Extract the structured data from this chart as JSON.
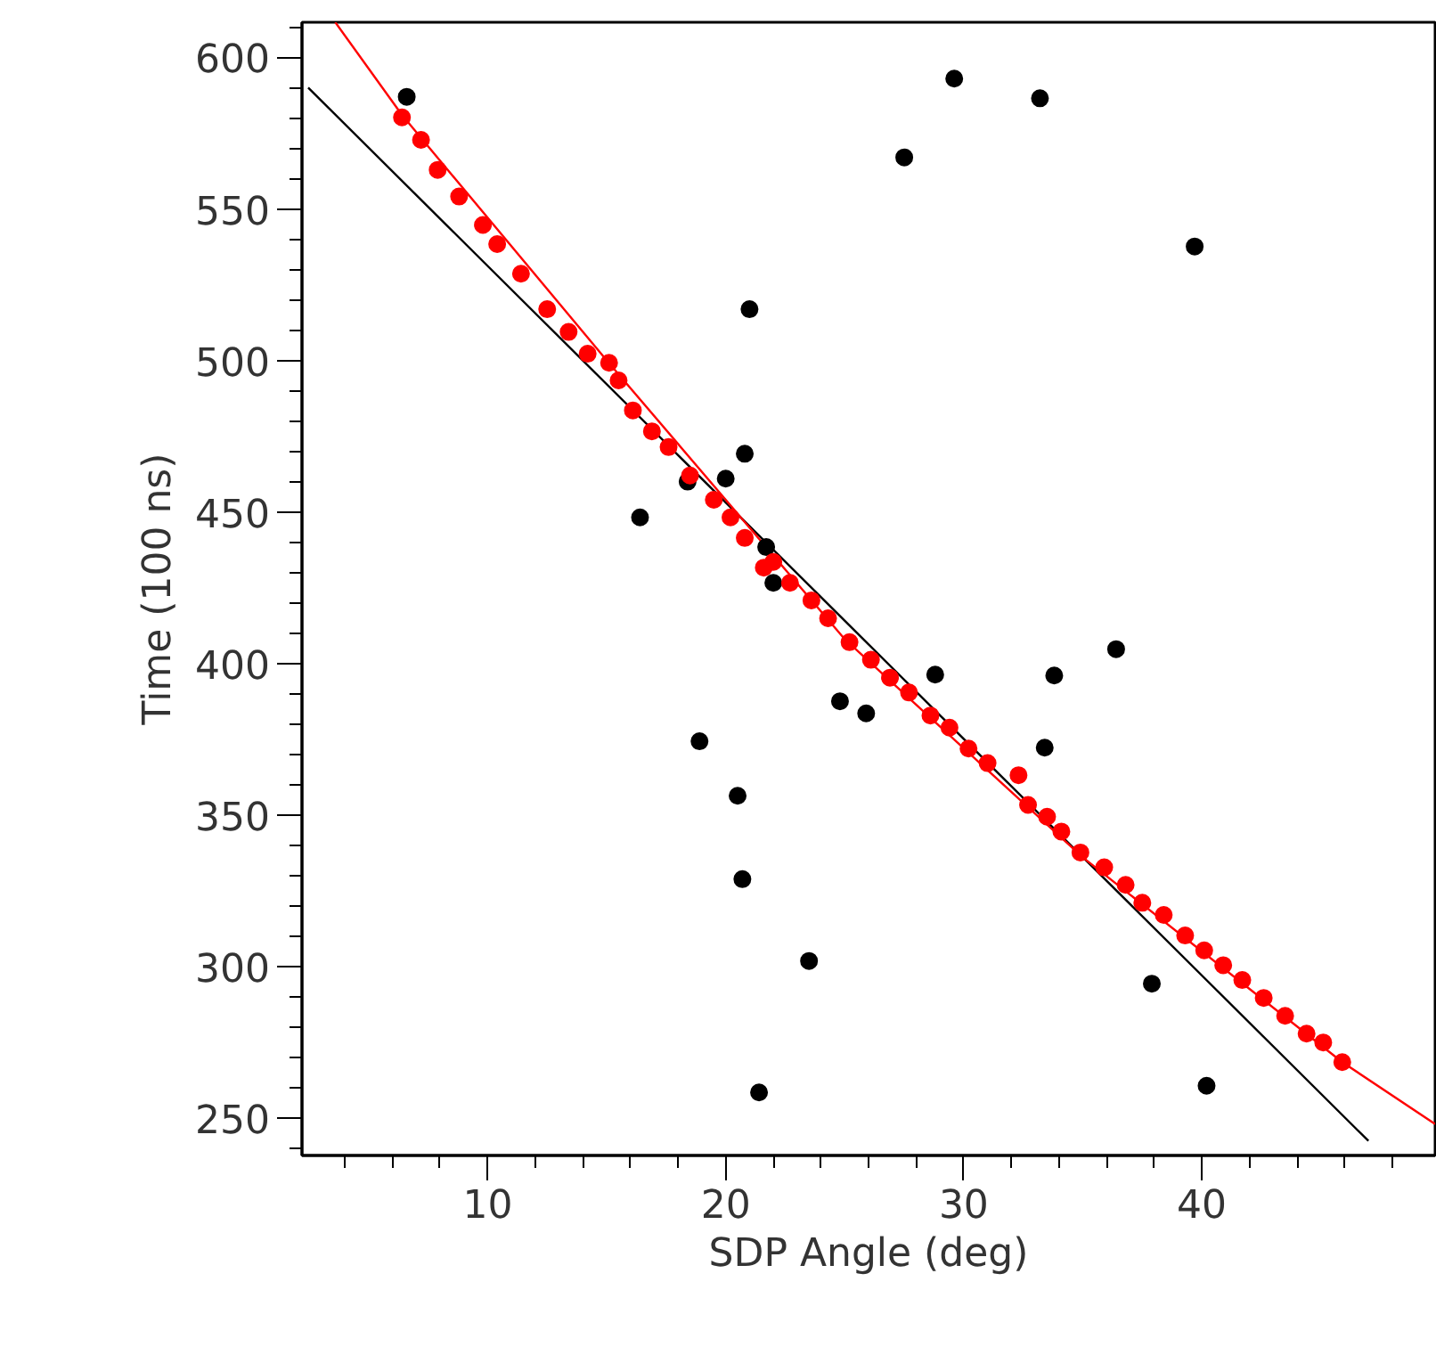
{
  "chart_data": {
    "type": "scatter",
    "xlabel": "SDP Angle (deg)",
    "ylabel": "Time (100 ns)",
    "xlim": [
      2.2,
      49.8
    ],
    "ylim": [
      237.6,
      611.6
    ],
    "xticks": [
      {
        "value": 4,
        "label": null
      },
      {
        "value": 6,
        "label": null
      },
      {
        "value": 8,
        "label": null
      },
      10,
      {
        "value": 12,
        "label": null
      },
      {
        "value": 14,
        "label": null
      },
      {
        "value": 16,
        "label": null
      },
      {
        "value": 18,
        "label": null
      },
      20,
      {
        "value": 22,
        "label": null
      },
      {
        "value": 24,
        "label": null
      },
      {
        "value": 26,
        "label": null
      },
      {
        "value": 28,
        "label": null
      },
      30,
      {
        "value": 32,
        "label": null
      },
      {
        "value": 34,
        "label": null
      },
      {
        "value": 36,
        "label": null
      },
      {
        "value": 38,
        "label": null
      },
      40,
      {
        "value": 42,
        "label": null
      },
      {
        "value": 44,
        "label": null
      },
      {
        "value": 46,
        "label": null
      },
      {
        "value": 48,
        "label": null
      }
    ],
    "yticks": [
      {
        "value": 240,
        "label": null
      },
      250,
      {
        "value": 260,
        "label": null
      },
      {
        "value": 270,
        "label": null
      },
      {
        "value": 280,
        "label": null
      },
      {
        "value": 290,
        "label": null
      },
      300,
      {
        "value": 310,
        "label": null
      },
      {
        "value": 320,
        "label": null
      },
      {
        "value": 330,
        "label": null
      },
      {
        "value": 340,
        "label": null
      },
      350,
      {
        "value": 360,
        "label": null
      },
      {
        "value": 370,
        "label": null
      },
      {
        "value": 380,
        "label": null
      },
      {
        "value": 390,
        "label": null
      },
      400,
      {
        "value": 410,
        "label": null
      },
      {
        "value": 420,
        "label": null
      },
      {
        "value": 430,
        "label": null
      },
      {
        "value": 440,
        "label": null
      },
      450,
      {
        "value": 460,
        "label": null
      },
      {
        "value": 470,
        "label": null
      },
      {
        "value": 480,
        "label": null
      },
      {
        "value": 490,
        "label": null
      },
      500,
      {
        "value": 510,
        "label": null
      },
      {
        "value": 520,
        "label": null
      },
      {
        "value": 530,
        "label": null
      },
      {
        "value": 540,
        "label": null
      },
      550,
      {
        "value": 560,
        "label": null
      },
      {
        "value": 570,
        "label": null
      },
      {
        "value": 580,
        "label": null
      },
      {
        "value": 590,
        "label": null
      },
      600,
      {
        "value": 610,
        "label": null
      }
    ],
    "grid": false,
    "marker": "circle",
    "series": [
      {
        "type": "line",
        "marker": "none",
        "color": "#000000",
        "x": [
          2.46,
          31.7,
          47.0
        ],
        "values": [
          590,
          361.8,
          242.4
        ]
      },
      {
        "type": "line",
        "marker": "none",
        "color": "#ff0000",
        "x": [
          3.6,
          6.4,
          15,
          25,
          35,
          45.9,
          49.8
        ],
        "values": [
          611.6,
          581,
          500,
          408,
          336,
          268.4,
          248
        ]
      },
      {
        "color": "#000000",
        "x": [
          6.6,
          16.4,
          18.4,
          20.0,
          20.8,
          22.0,
          21.7,
          18.9,
          20.5,
          20.7,
          23.5,
          21.4,
          24.8,
          25.9,
          28.8,
          33.4,
          33.8,
          36.4,
          37.9,
          40.2,
          21.0,
          27.5,
          29.6,
          33.2,
          39.7
        ],
        "values": [
          587,
          448.2,
          460,
          461,
          469.2,
          426.6,
          438.4,
          374.3,
          356.3,
          328.8,
          301.8,
          258.4,
          387.5,
          383.5,
          396.3,
          372.2,
          396,
          404.7,
          294.3,
          260.6,
          516.9,
          567,
          593,
          586.5,
          537.6
        ]
      },
      {
        "color": "#ff0000",
        "x": [
          6.4,
          7.2,
          7.9,
          8.8,
          9.8,
          10.4,
          11.4,
          12.5,
          13.4,
          14.2,
          15.1,
          15.5,
          16.1,
          16.9,
          17.6,
          18.5,
          19.5,
          20.2,
          20.8,
          22.0,
          21.6,
          22.7,
          23.6,
          24.3,
          25.2,
          26.1,
          26.9,
          27.7,
          28.6,
          29.4,
          30.2,
          31.0,
          32.3,
          32.7,
          33.5,
          34.1,
          34.9,
          35.9,
          36.8,
          37.5,
          38.4,
          39.3,
          40.1,
          40.9,
          41.7,
          42.6,
          43.5,
          44.4,
          45.1,
          45.9
        ],
        "values": [
          580.2,
          572.8,
          562.9,
          554.1,
          544.7,
          538.4,
          528.6,
          516.9,
          509.4,
          502.2,
          499.2,
          493.4,
          483.5,
          476.6,
          471.4,
          462,
          454,
          448.2,
          441.4,
          433.5,
          431.6,
          426.6,
          420.8,
          414.9,
          407,
          401.2,
          395.3,
          390.4,
          382.8,
          378.8,
          371.9,
          367.1,
          363.1,
          353.3,
          349.4,
          344.5,
          337.6,
          332.7,
          326.9,
          321,
          317,
          310.2,
          305.3,
          300.4,
          295.5,
          289.6,
          283.7,
          277.8,
          274.9,
          268.4
        ]
      }
    ]
  }
}
